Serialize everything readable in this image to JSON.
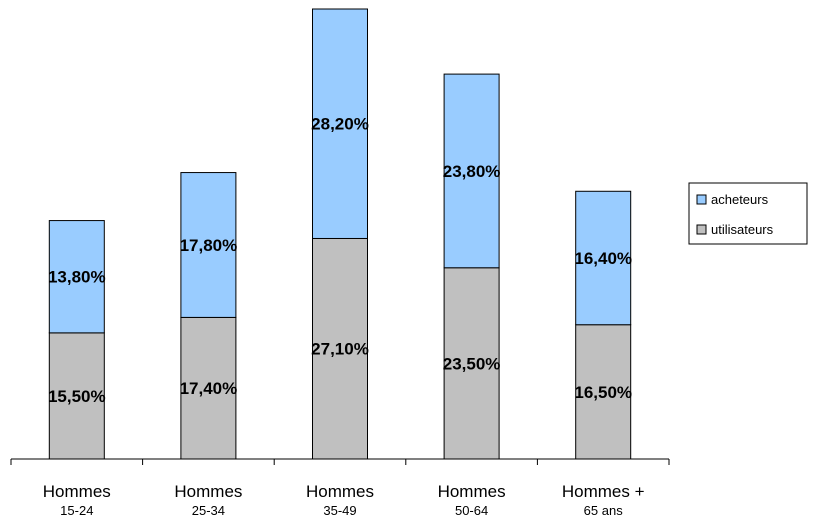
{
  "chart_data": {
    "type": "bar",
    "stacked": true,
    "categories": [
      {
        "line1": "Hommes",
        "line2": "15-24"
      },
      {
        "line1": "Hommes",
        "line2": "25-34"
      },
      {
        "line1": "Hommes",
        "line2": "35-49"
      },
      {
        "line1": "Hommes",
        "line2": "50-64"
      },
      {
        "line1": "Hommes +",
        "line2": "65 ans"
      }
    ],
    "series": [
      {
        "name": "utilisateurs",
        "color": "#c0c0c0",
        "values": [
          15.5,
          17.4,
          27.1,
          23.5,
          16.5
        ],
        "labels": [
          "15,50%",
          "17,40%",
          "27,10%",
          "23,50%",
          "16,50%"
        ]
      },
      {
        "name": "acheteurs",
        "color": "#99ccff",
        "values": [
          13.8,
          17.8,
          28.2,
          23.8,
          16.4
        ],
        "labels": [
          "13,80%",
          "17,80%",
          "28,20%",
          "23,80%",
          "16,40%"
        ]
      }
    ],
    "legend_order": [
      "acheteurs",
      "utilisateurs"
    ],
    "legend_position": "right",
    "ylim": [
      0,
      55.3
    ],
    "grid": false
  }
}
